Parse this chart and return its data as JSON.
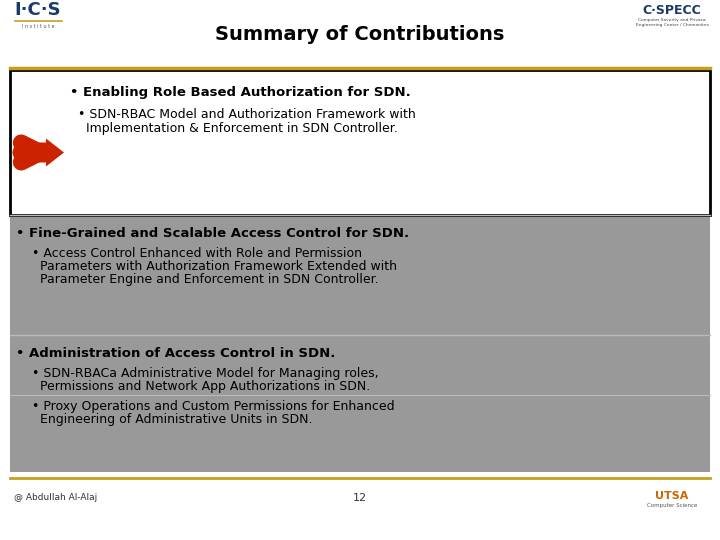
{
  "title": "Summary of Contributions",
  "bg_color": "#ffffff",
  "header_line_color": "#c8a020",
  "title_fontsize": 14,
  "title_color": "#000000",
  "footer_text_left": "@ Abdullah Al-Alaj",
  "footer_text_center": "12",
  "section1_heading": "Enabling Role Based Authorization for SDN.",
  "section1_sub_line1": "  • SDN-RBAC Model and Authorization Framework with",
  "section1_sub_line2": "    Implementation & Enforcement in SDN Controller.",
  "section2_heading": "Fine-Grained and Scalable Access Control for SDN.",
  "section2_sub_line1": "  • Access Control Enhanced with Role and Permission",
  "section2_sub_line2": "    Parameters with Authorization Framework Extended with",
  "section2_sub_line3": "    Parameter Engine and Enforcement in SDN Controller.",
  "section3_heading": "Administration of Access Control in SDN.",
  "section3_sub1_line1": "  • SDN-RBACa Administrative Model for Managing roles,",
  "section3_sub1_line2": "    Permissions and Network App Authorizations in SDN.",
  "section3_sub2_line1": "  • Proxy Operations and Custom Permissions for Enhanced",
  "section3_sub2_line2": "    Engineering of Administrative Units in SDN.",
  "gray_bg": "#999999",
  "white_box_bg": "#ffffff",
  "arrow_color": "#cc2200",
  "border_color": "#000000",
  "body_fontsize": 9.0,
  "heading_fontsize": 9.5,
  "ics_color": "#1a3a6b",
  "cspecc_color": "#1a3a6b"
}
